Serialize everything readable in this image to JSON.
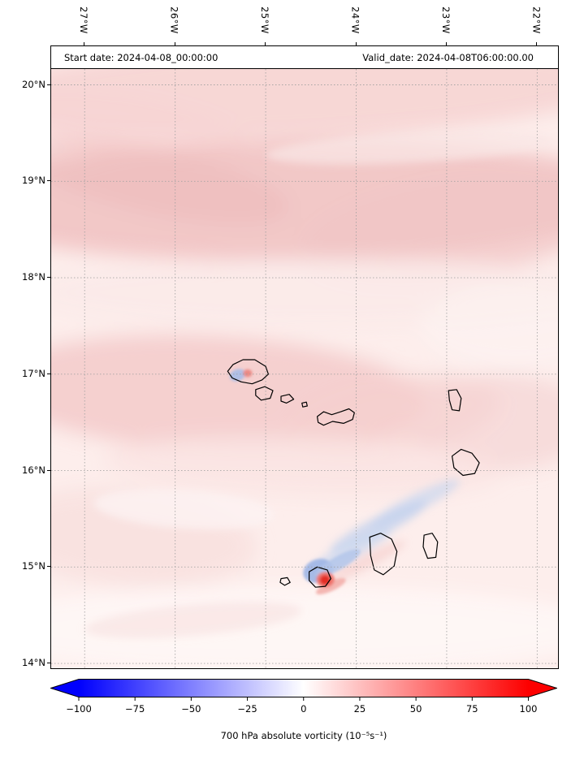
{
  "chart_data": {
    "type": "heatmap",
    "subtype": "geographic filled-contour vorticity map with island coastlines",
    "annotations": {
      "start_date": "Start date: 2024-04-08_00:00:00",
      "valid_date": "Valid_date: 2024-04-08T06:00:00.00"
    },
    "x_axis": {
      "unit": "longitude",
      "tick_values": [
        -27,
        -26,
        -25,
        -24,
        -23,
        -22
      ],
      "tick_labels": [
        "27°W",
        "26°W",
        "25°W",
        "24°W",
        "23°W",
        "22°W"
      ],
      "range": [
        -27.37,
        -21.77
      ],
      "grid": "dotted"
    },
    "y_axis": {
      "unit": "latitude",
      "tick_values": [
        20,
        19,
        18,
        17,
        16,
        15,
        14
      ],
      "tick_labels": [
        "20°N",
        "19°N",
        "18°N",
        "17°N",
        "16°N",
        "15°N",
        "14°N"
      ],
      "range": [
        13.95,
        20.4
      ],
      "grid": "dotted"
    },
    "colorbar": {
      "label": "700 hPa absolute vorticity (10⁻⁵s⁻¹)",
      "tick_values": [
        -100,
        -75,
        -50,
        -25,
        0,
        25,
        50,
        75,
        100
      ],
      "tick_labels": [
        "−100",
        "−75",
        "−50",
        "−25",
        "0",
        "25",
        "50",
        "75",
        "100"
      ],
      "range": [
        -100,
        100
      ],
      "colormap": "blue-white-red",
      "extend": "both",
      "colors": {
        "min": "#0000fd",
        "mid": "#ffffff",
        "max": "#fd0000"
      }
    },
    "features": [
      {
        "name": "weak positive vorticity band",
        "lat_range": [
          18.2,
          19.4
        ],
        "lon_range": [
          -27.4,
          -21.8
        ],
        "value_est": 15
      },
      {
        "name": "weak positive vorticity band",
        "lat_range": [
          19.7,
          20.2
        ],
        "lon_range": [
          -27.4,
          -21.8
        ],
        "value_est": 10
      },
      {
        "name": "weak positive vorticity band",
        "lat_range": [
          16.0,
          17.3
        ],
        "lon_range": [
          -27.4,
          -22.0
        ],
        "value_est": 12
      },
      {
        "name": "near-zero vorticity lane",
        "lat_range": [
          17.5,
          18.1
        ],
        "lon_range": [
          -27.4,
          -21.8
        ],
        "value_est": 3
      },
      {
        "name": "cyclonic-anticyclonic dipole over Fogo",
        "lat": 14.87,
        "lon": -24.34,
        "max_est": 95,
        "min_est": -45
      },
      {
        "name": "negative vorticity wake streaks NE of Fogo",
        "lat_range": [
          14.9,
          15.9
        ],
        "lon_range": [
          -24.4,
          -23.0
        ],
        "value_est": -15
      },
      {
        "name": "small dipole over Santo Antão",
        "lat": 17.0,
        "lon": -25.25,
        "max_est": 40,
        "min_est": -30
      },
      {
        "name": "near-zero vorticity at southern edge",
        "lat_range": [
          14.0,
          14.6
        ],
        "lon_range": [
          -27.4,
          -21.8
        ],
        "value_est": 2
      }
    ]
  },
  "map": {
    "base_color": "#fdeeec",
    "grid_color": "#9e9e9e",
    "coastline_color": "#000000",
    "islands": [
      {
        "name": "santo-antao",
        "points": [
          [
            -25.42,
            17.03
          ],
          [
            -25.36,
            17.1
          ],
          [
            -25.25,
            17.15
          ],
          [
            -25.12,
            17.15
          ],
          [
            -25.0,
            17.08
          ],
          [
            -24.97,
            17.0
          ],
          [
            -25.04,
            16.94
          ],
          [
            -25.15,
            16.9
          ],
          [
            -25.27,
            16.92
          ],
          [
            -25.37,
            16.96
          ]
        ]
      },
      {
        "name": "sao-vicente",
        "points": [
          [
            -25.11,
            16.84
          ],
          [
            -25.01,
            16.87
          ],
          [
            -24.92,
            16.83
          ],
          [
            -24.95,
            16.75
          ],
          [
            -25.05,
            16.73
          ],
          [
            -25.11,
            16.78
          ]
        ]
      },
      {
        "name": "santa-luzia",
        "points": [
          [
            -24.83,
            16.77
          ],
          [
            -24.74,
            16.79
          ],
          [
            -24.69,
            16.74
          ],
          [
            -24.77,
            16.7
          ],
          [
            -24.83,
            16.72
          ]
        ]
      },
      {
        "name": "branco-raso",
        "points": [
          [
            -24.6,
            16.7
          ],
          [
            -24.55,
            16.71
          ],
          [
            -24.54,
            16.67
          ],
          [
            -24.59,
            16.66
          ]
        ]
      },
      {
        "name": "sao-nicolau",
        "points": [
          [
            -24.43,
            16.56
          ],
          [
            -24.36,
            16.61
          ],
          [
            -24.27,
            16.58
          ],
          [
            -24.17,
            16.61
          ],
          [
            -24.08,
            16.64
          ],
          [
            -24.02,
            16.6
          ],
          [
            -24.04,
            16.53
          ],
          [
            -24.14,
            16.49
          ],
          [
            -24.26,
            16.51
          ],
          [
            -24.36,
            16.47
          ],
          [
            -24.42,
            16.5
          ]
        ]
      },
      {
        "name": "sal",
        "points": [
          [
            -22.98,
            16.83
          ],
          [
            -22.89,
            16.84
          ],
          [
            -22.84,
            16.75
          ],
          [
            -22.86,
            16.62
          ],
          [
            -22.94,
            16.63
          ],
          [
            -22.97,
            16.73
          ]
        ]
      },
      {
        "name": "boa-vista",
        "points": [
          [
            -22.94,
            16.15
          ],
          [
            -22.84,
            16.22
          ],
          [
            -22.72,
            16.18
          ],
          [
            -22.64,
            16.08
          ],
          [
            -22.69,
            15.97
          ],
          [
            -22.82,
            15.95
          ],
          [
            -22.92,
            16.03
          ]
        ]
      },
      {
        "name": "maio",
        "points": [
          [
            -23.25,
            15.33
          ],
          [
            -23.16,
            15.35
          ],
          [
            -23.1,
            15.26
          ],
          [
            -23.12,
            15.1
          ],
          [
            -23.21,
            15.09
          ],
          [
            -23.26,
            15.21
          ]
        ]
      },
      {
        "name": "santiago",
        "points": [
          [
            -23.85,
            15.31
          ],
          [
            -23.73,
            15.35
          ],
          [
            -23.61,
            15.29
          ],
          [
            -23.55,
            15.16
          ],
          [
            -23.58,
            15.01
          ],
          [
            -23.7,
            14.92
          ],
          [
            -23.8,
            14.97
          ],
          [
            -23.84,
            15.12
          ]
        ]
      },
      {
        "name": "fogo",
        "points": [
          [
            -24.52,
            14.95
          ],
          [
            -24.43,
            15.0
          ],
          [
            -24.32,
            14.97
          ],
          [
            -24.28,
            14.88
          ],
          [
            -24.34,
            14.8
          ],
          [
            -24.45,
            14.79
          ],
          [
            -24.52,
            14.86
          ]
        ]
      },
      {
        "name": "brava",
        "points": [
          [
            -24.83,
            14.88
          ],
          [
            -24.76,
            14.89
          ],
          [
            -24.73,
            14.84
          ],
          [
            -24.79,
            14.81
          ],
          [
            -24.84,
            14.84
          ]
        ]
      }
    ],
    "blobs_soft": [
      {
        "lon": -24.6,
        "lat": 19.95,
        "rx": 3.6,
        "ry": 0.5,
        "rot": -2,
        "fill": "#f6d4d3",
        "op": 0.9
      },
      {
        "lon": -26.6,
        "lat": 19.55,
        "rx": 1.4,
        "ry": 0.3,
        "rot": 8,
        "fill": "#f6d4d3",
        "op": 0.6
      },
      {
        "lon": -24.7,
        "lat": 18.8,
        "rx": 3.8,
        "ry": 0.62,
        "rot": -1,
        "fill": "#f1c5c5",
        "op": 0.95
      },
      {
        "lon": -26.2,
        "lat": 19.0,
        "rx": 1.5,
        "ry": 0.35,
        "rot": 12,
        "fill": "#eebaba",
        "op": 0.5
      },
      {
        "lon": -22.9,
        "lat": 18.5,
        "rx": 1.7,
        "ry": 0.5,
        "rot": -8,
        "fill": "#f1c5c5",
        "op": 0.7
      },
      {
        "lon": -24.4,
        "lat": 17.85,
        "rx": 3.2,
        "ry": 0.35,
        "rot": 0,
        "fill": "#fbeae9",
        "op": 0.9
      },
      {
        "lon": -25.6,
        "lat": 16.8,
        "rx": 2.4,
        "ry": 0.6,
        "rot": 3,
        "fill": "#f3caca",
        "op": 0.85
      },
      {
        "lon": -23.6,
        "lat": 16.55,
        "rx": 1.2,
        "ry": 0.4,
        "rot": -10,
        "fill": "#f5d0cf",
        "op": 0.7
      },
      {
        "lon": -22.4,
        "lat": 16.5,
        "rx": 1.0,
        "ry": 0.5,
        "rot": 0,
        "fill": "#f5d3d2",
        "op": 0.65
      },
      {
        "lon": -24.6,
        "lat": 16.05,
        "rx": 2.2,
        "ry": 0.3,
        "rot": 2,
        "fill": "#fae4e3",
        "op": 0.85
      },
      {
        "lon": -26.5,
        "lat": 15.3,
        "rx": 1.4,
        "ry": 0.5,
        "rot": 5,
        "fill": "#f7dad9",
        "op": 0.6
      },
      {
        "lon": -24.8,
        "lat": 14.35,
        "rx": 3.6,
        "ry": 0.45,
        "rot": 0,
        "fill": "#fef7f6",
        "op": 0.95
      },
      {
        "lon": -22.2,
        "lat": 17.5,
        "rx": 1.1,
        "ry": 0.45,
        "rot": 0,
        "fill": "#fdf1f0",
        "op": 0.85
      }
    ],
    "blobs_medium": [
      {
        "lon": -23.4,
        "lat": 19.35,
        "rx": 1.6,
        "ry": 0.16,
        "rot": -3,
        "fill": "#fae7e6",
        "op": 0.7
      },
      {
        "lon": -25.9,
        "lat": 15.6,
        "rx": 1.0,
        "ry": 0.2,
        "rot": 4,
        "fill": "#fdf3f2",
        "op": 0.8
      },
      {
        "lon": -25.8,
        "lat": 14.45,
        "rx": 1.2,
        "ry": 0.16,
        "rot": -5,
        "fill": "#f8dcdb",
        "op": 0.5
      },
      {
        "lon": -23.35,
        "lat": 15.66,
        "rx": 0.55,
        "ry": 0.09,
        "rot": -27,
        "fill": "#cbd7f0",
        "op": 0.7
      },
      {
        "lon": -23.75,
        "lat": 15.42,
        "rx": 0.6,
        "ry": 0.1,
        "rot": -27,
        "fill": "#c3d1ee",
        "op": 0.75
      },
      {
        "lon": -24.05,
        "lat": 15.18,
        "rx": 0.5,
        "ry": 0.09,
        "rot": -27,
        "fill": "#cbd7f0",
        "op": 0.7
      },
      {
        "lon": -23.9,
        "lat": 15.05,
        "rx": 0.5,
        "ry": 0.07,
        "rot": -27,
        "fill": "#f3c6c3",
        "op": 0.5
      }
    ],
    "blobs_sharp": [
      {
        "lon": -24.42,
        "lat": 14.96,
        "rx": 0.17,
        "ry": 0.12,
        "rot": -20,
        "fill": "#9db5e6",
        "op": 0.9
      },
      {
        "lon": -24.2,
        "lat": 15.04,
        "rx": 0.28,
        "ry": 0.07,
        "rot": -30,
        "fill": "#b3c5ea",
        "op": 0.85
      },
      {
        "lon": -24.28,
        "lat": 14.8,
        "rx": 0.18,
        "ry": 0.05,
        "rot": -25,
        "fill": "#f2aca7",
        "op": 0.85
      },
      {
        "lon": -24.34,
        "lat": 14.87,
        "rx": 0.1,
        "ry": 0.08,
        "rot": 0,
        "fill": "#ef766e",
        "op": 0.95
      },
      {
        "lon": -24.345,
        "lat": 14.865,
        "rx": 0.055,
        "ry": 0.05,
        "rot": 0,
        "fill": "#e42d27",
        "op": 1
      },
      {
        "lon": -25.31,
        "lat": 16.99,
        "rx": 0.09,
        "ry": 0.06,
        "rot": -20,
        "fill": "#a7bce8",
        "op": 0.9
      },
      {
        "lon": -25.2,
        "lat": 17.01,
        "rx": 0.05,
        "ry": 0.04,
        "rot": 0,
        "fill": "#ea817a",
        "op": 0.9
      }
    ]
  }
}
